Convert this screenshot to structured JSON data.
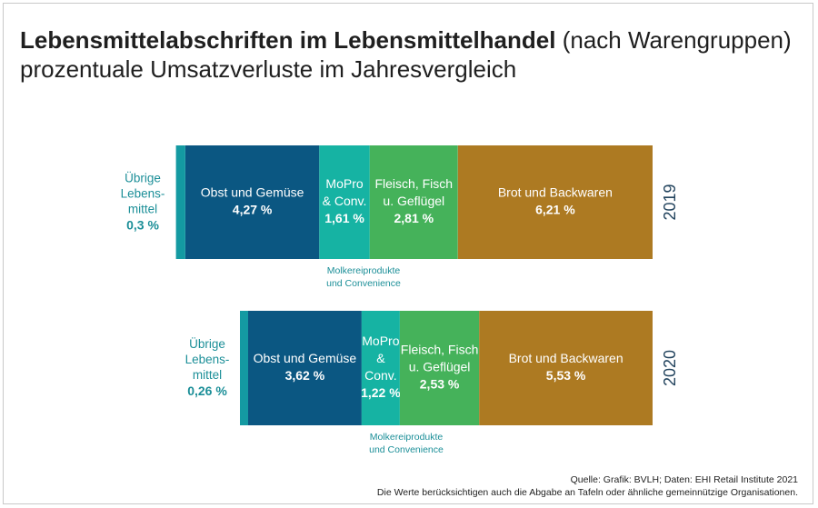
{
  "title_bold": "Lebensmittelabschriften im Lebensmittelhandel",
  "title_normal": "(nach Warengruppen)",
  "subtitle": "prozentuale Umsatzverluste im Jahresvergleich",
  "colors": {
    "uebrige": "#149aa2",
    "obst": "#0b5782",
    "mopro": "#16b3a3",
    "fleisch": "#45b25a",
    "brot": "#ad7a22",
    "label_outside": "#1c8f98",
    "year": "#23445e"
  },
  "chart_data": {
    "type": "bar",
    "stacked": true,
    "orientation": "horizontal",
    "unit": "%",
    "categories": [
      "2019",
      "2020"
    ],
    "series": [
      {
        "key": "uebrige",
        "name": "Übrige Lebensmittel",
        "values": [
          0.3,
          0.26
        ]
      },
      {
        "key": "obst",
        "name": "Obst und Gemüse",
        "values": [
          4.27,
          3.62
        ]
      },
      {
        "key": "mopro",
        "name": "MoPro & Conv.",
        "values": [
          1.61,
          1.22
        ]
      },
      {
        "key": "fleisch",
        "name": "Fleisch, Fisch u. Geflügel",
        "values": [
          2.81,
          2.53
        ]
      },
      {
        "key": "brot",
        "name": "Brot und Backwaren",
        "values": [
          6.21,
          5.53
        ]
      }
    ],
    "rows": [
      {
        "year": "2019",
        "outside_label_lines": [
          "Übrige",
          "Lebens-",
          "mittel"
        ],
        "outside_value": "0,3 %",
        "segments": [
          {
            "key": "uebrige",
            "value": 0.3,
            "label_lines": [],
            "value_label": ""
          },
          {
            "key": "obst",
            "value": 4.27,
            "label_lines": [
              "Obst und Gemüse"
            ],
            "value_label": "4,27 %"
          },
          {
            "key": "mopro",
            "value": 1.61,
            "label_lines": [
              "MoPro",
              "& Conv."
            ],
            "value_label": "1,61 %"
          },
          {
            "key": "fleisch",
            "value": 2.81,
            "label_lines": [
              "Fleisch, Fisch",
              "u. Geflügel"
            ],
            "value_label": "2,81 %"
          },
          {
            "key": "brot",
            "value": 6.21,
            "label_lines": [
              "Brot und Backwaren"
            ],
            "value_label": "6,21 %"
          }
        ],
        "note_lines": [
          "Molkereiprodukte",
          "und Convenience"
        ]
      },
      {
        "year": "2020",
        "outside_label_lines": [
          "Übrige",
          "Lebens-",
          "mittel"
        ],
        "outside_value": "0,26 %",
        "segments": [
          {
            "key": "uebrige",
            "value": 0.26,
            "label_lines": [],
            "value_label": ""
          },
          {
            "key": "obst",
            "value": 3.62,
            "label_lines": [
              "Obst und Gemüse"
            ],
            "value_label": "3,62 %"
          },
          {
            "key": "mopro",
            "value": 1.22,
            "label_lines": [
              "MoPro",
              "&",
              "Conv."
            ],
            "value_label": "1,22 %"
          },
          {
            "key": "fleisch",
            "value": 2.53,
            "label_lines": [
              "Fleisch, Fisch",
              "u. Geflügel"
            ],
            "value_label": "2,53 %"
          },
          {
            "key": "brot",
            "value": 5.53,
            "label_lines": [
              "Brot und Backwaren"
            ],
            "value_label": "5,53 %"
          }
        ],
        "note_lines": [
          "Molkereiprodukte",
          "und Convenience"
        ]
      }
    ]
  },
  "source_line1": "Quelle: Grafik: BVLH; Daten: EHI Retail Institute 2021",
  "source_line2": "Die Werte berücksichtigen auch die Abgabe an Tafeln oder ähnliche gemeinnützige Organisationen."
}
